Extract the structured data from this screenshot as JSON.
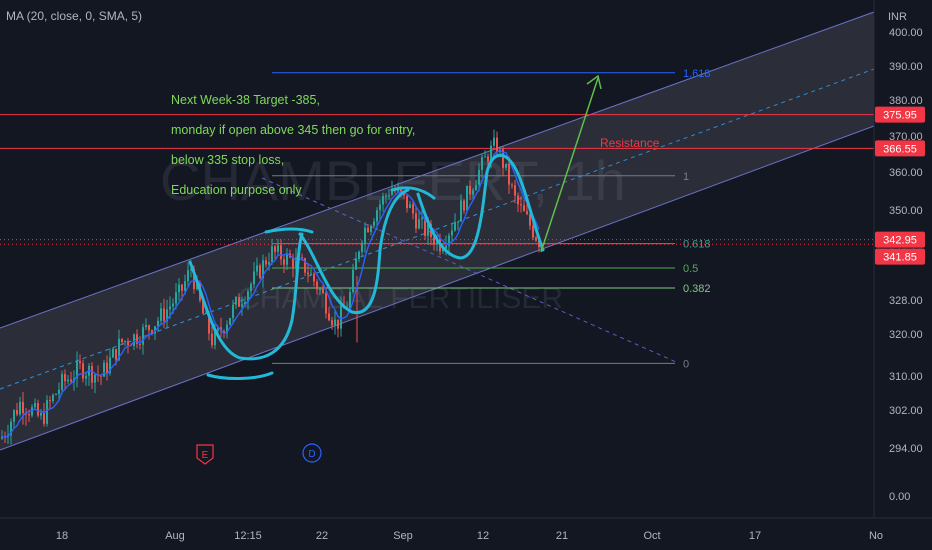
{
  "chart_data": {
    "type": "candlestick",
    "title": "",
    "watermark_symbol": "CHAMBLFERT, 1h",
    "watermark_name": "CHAMBAL FERTILISER",
    "indicator_label": "MA (20, close, 0, SMA, 5)",
    "currency": "INR",
    "y_ticks": [
      400,
      390,
      380,
      370,
      360,
      350,
      340,
      328,
      320,
      310,
      302,
      294,
      0
    ],
    "y_tick_labels": [
      "400.00",
      "390.00",
      "380.00",
      "370.00",
      "360.00",
      "350.00",
      "340.00",
      "328.00",
      "320.00",
      "310.00",
      "302.00",
      "294.00",
      "0.00"
    ],
    "x_ticks": [
      "18",
      "Aug",
      "12:15",
      "22",
      "Sep",
      "12",
      "21",
      "Oct",
      "17",
      "No"
    ],
    "price_badges": [
      {
        "label": "375.95",
        "value": 375.95,
        "color": "#f23645"
      },
      {
        "label": "366.55",
        "value": 366.55,
        "color": "#f23645"
      },
      {
        "label": "342.95",
        "value": 342.95,
        "color": "#f23645"
      },
      {
        "label": "341.85",
        "value": 341.85,
        "color": "#f23645"
      }
    ],
    "fib_levels": [
      {
        "label": "1.618",
        "value": 388.0,
        "color": "#2962ff"
      },
      {
        "label": "1",
        "value": 359.0,
        "color": "#787b86"
      },
      {
        "label": "0.618",
        "value": 342.0,
        "color": "#26a69a"
      },
      {
        "label": "0.5",
        "value": 336.0,
        "color": "#4caf50"
      },
      {
        "label": "0.382",
        "value": 331.0,
        "color": "#81c784"
      },
      {
        "label": "0",
        "value": 313.0,
        "color": "#787b86"
      }
    ],
    "annotations": {
      "resistance": "Resistance",
      "notes": [
        "Next Week-38 Target -385,",
        "monday if open above 345 then go for entry,",
        "below 335 stop  loss,",
        "Education purpose only"
      ]
    },
    "events": [
      "E",
      "D"
    ],
    "colors": {
      "up": "#26a69a",
      "down": "#ef5350",
      "ma": "#2962ff",
      "channel": "#9598a1",
      "sketch": "#22b8d6",
      "arrow": "#5fbf4a",
      "resistance": "#f23645"
    }
  }
}
